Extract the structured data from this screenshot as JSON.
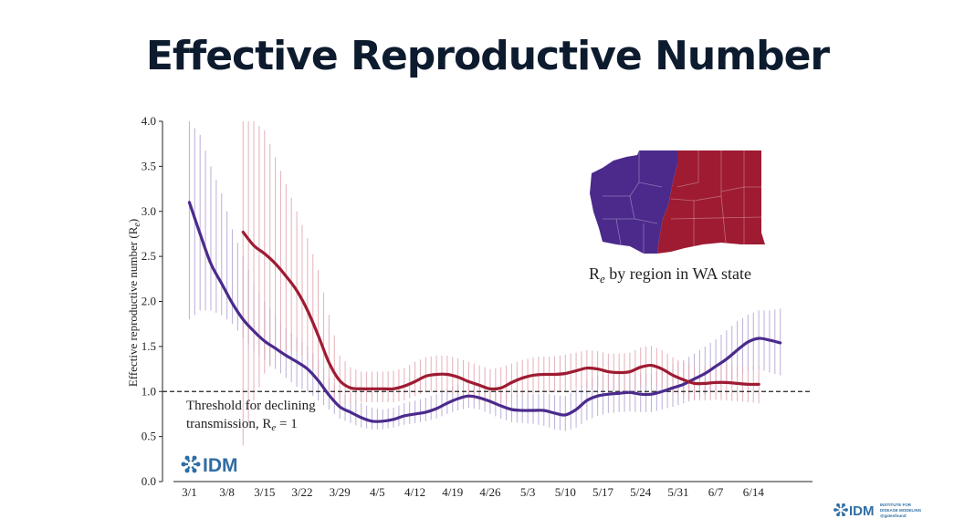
{
  "title": "Effective Reproductive Number",
  "colors": {
    "west": "#4b2a8c",
    "east": "#9e1b32",
    "west_err": "#b7a8d6",
    "east_err": "#e3a9b3",
    "idm": "#2f6ea5",
    "title": "#0d1b2e"
  },
  "map": {
    "caption_prefix": "R",
    "caption_sub": "e",
    "caption_rest": " by region in WA state"
  },
  "threshold": {
    "line1": "Threshold for declining",
    "line2_prefix": "transmission, R",
    "line2_sub": "e",
    "line2_rest": " = 1"
  },
  "logos": {
    "idm_large": "IDM",
    "idm_small": "IDM",
    "idm_small_line1": "INSTITUTE FOR",
    "idm_small_line2": "DISEASE MODELING",
    "idm_small_line3": "@gatesfound",
    "icon": "idm-snowflake-icon"
  },
  "chart_data": {
    "type": "line",
    "ylabel_prefix": "Effective reproductive number (R",
    "ylabel_sub": "e",
    "ylabel_suffix": ")",
    "ylim": [
      0,
      4
    ],
    "yticks": [
      "0.0",
      "0.5",
      "1.0",
      "1.5",
      "2.0",
      "2.5",
      "3.0",
      "3.5",
      "4.0"
    ],
    "xlim": [
      -5,
      116
    ],
    "xticks": [
      {
        "label": "3/1",
        "day": 0
      },
      {
        "label": "3/8",
        "day": 7
      },
      {
        "label": "3/15",
        "day": 14
      },
      {
        "label": "3/22",
        "day": 21
      },
      {
        "label": "3/29",
        "day": 28
      },
      {
        "label": "4/5",
        "day": 35
      },
      {
        "label": "4/12",
        "day": 42
      },
      {
        "label": "4/19",
        "day": 49
      },
      {
        "label": "4/26",
        "day": 56
      },
      {
        "label": "5/3",
        "day": 63
      },
      {
        "label": "5/10",
        "day": 70
      },
      {
        "label": "5/17",
        "day": 77
      },
      {
        "label": "5/24",
        "day": 84
      },
      {
        "label": "5/31",
        "day": 91
      },
      {
        "label": "6/7",
        "day": 98
      },
      {
        "label": "6/14",
        "day": 105
      }
    ],
    "threshold_value": 1.0,
    "grid": false,
    "series": [
      {
        "color_key": "west",
        "points": [
          [
            0,
            3.1
          ],
          [
            2,
            2.75
          ],
          [
            4,
            2.42
          ],
          [
            6,
            2.2
          ],
          [
            8,
            1.98
          ],
          [
            10,
            1.8
          ],
          [
            12,
            1.67
          ],
          [
            14,
            1.56
          ],
          [
            16,
            1.48
          ],
          [
            18,
            1.4
          ],
          [
            20,
            1.33
          ],
          [
            22,
            1.25
          ],
          [
            24,
            1.12
          ],
          [
            26,
            0.96
          ],
          [
            28,
            0.83
          ],
          [
            30,
            0.77
          ],
          [
            32,
            0.71
          ],
          [
            34,
            0.67
          ],
          [
            36,
            0.67
          ],
          [
            38,
            0.69
          ],
          [
            40,
            0.73
          ],
          [
            42,
            0.75
          ],
          [
            44,
            0.77
          ],
          [
            46,
            0.81
          ],
          [
            48,
            0.87
          ],
          [
            50,
            0.92
          ],
          [
            52,
            0.95
          ],
          [
            54,
            0.93
          ],
          [
            56,
            0.89
          ],
          [
            58,
            0.84
          ],
          [
            60,
            0.8
          ],
          [
            62,
            0.79
          ],
          [
            64,
            0.79
          ],
          [
            66,
            0.79
          ],
          [
            68,
            0.76
          ],
          [
            70,
            0.74
          ],
          [
            72,
            0.8
          ],
          [
            74,
            0.9
          ],
          [
            76,
            0.95
          ],
          [
            78,
            0.97
          ],
          [
            80,
            0.98
          ],
          [
            82,
            0.99
          ],
          [
            84,
            0.97
          ],
          [
            86,
            0.97
          ],
          [
            88,
            1.0
          ],
          [
            90,
            1.04
          ],
          [
            92,
            1.08
          ],
          [
            94,
            1.14
          ],
          [
            96,
            1.2
          ],
          [
            98,
            1.28
          ],
          [
            100,
            1.36
          ],
          [
            102,
            1.46
          ],
          [
            104,
            1.55
          ],
          [
            106,
            1.59
          ],
          [
            108,
            1.57
          ],
          [
            110,
            1.54
          ]
        ],
        "error": [
          [
            0,
            1.8,
            4.0
          ],
          [
            2,
            1.9,
            3.85
          ],
          [
            4,
            1.9,
            3.5
          ],
          [
            6,
            1.85,
            3.2
          ],
          [
            8,
            1.75,
            2.8
          ],
          [
            10,
            1.6,
            2.5
          ],
          [
            12,
            1.45,
            2.2
          ],
          [
            14,
            1.35,
            2.0
          ],
          [
            16,
            1.25,
            1.85
          ],
          [
            18,
            1.15,
            1.7
          ],
          [
            20,
            1.05,
            1.6
          ],
          [
            22,
            1.0,
            1.5
          ],
          [
            24,
            0.9,
            1.35
          ],
          [
            26,
            0.8,
            1.15
          ],
          [
            28,
            0.7,
            1.0
          ],
          [
            30,
            0.65,
            0.93
          ],
          [
            32,
            0.6,
            0.87
          ],
          [
            34,
            0.58,
            0.82
          ],
          [
            36,
            0.58,
            0.8
          ],
          [
            38,
            0.6,
            0.82
          ],
          [
            40,
            0.63,
            0.87
          ],
          [
            42,
            0.65,
            0.9
          ],
          [
            44,
            0.67,
            0.93
          ],
          [
            46,
            0.7,
            0.97
          ],
          [
            48,
            0.75,
            1.03
          ],
          [
            50,
            0.79,
            1.08
          ],
          [
            52,
            0.82,
            1.1
          ],
          [
            54,
            0.8,
            1.08
          ],
          [
            56,
            0.75,
            1.05
          ],
          [
            58,
            0.7,
            1.0
          ],
          [
            60,
            0.66,
            0.97
          ],
          [
            62,
            0.65,
            0.96
          ],
          [
            64,
            0.64,
            0.97
          ],
          [
            66,
            0.62,
            0.98
          ],
          [
            68,
            0.58,
            0.96
          ],
          [
            70,
            0.56,
            0.95
          ],
          [
            72,
            0.6,
            1.02
          ],
          [
            74,
            0.68,
            1.12
          ],
          [
            76,
            0.73,
            1.18
          ],
          [
            78,
            0.76,
            1.2
          ],
          [
            80,
            0.77,
            1.22
          ],
          [
            82,
            0.78,
            1.23
          ],
          [
            84,
            0.77,
            1.2
          ],
          [
            86,
            0.77,
            1.2
          ],
          [
            88,
            0.8,
            1.24
          ],
          [
            90,
            0.83,
            1.3
          ],
          [
            92,
            0.87,
            1.35
          ],
          [
            94,
            0.91,
            1.42
          ],
          [
            96,
            0.96,
            1.5
          ],
          [
            98,
            1.02,
            1.58
          ],
          [
            100,
            1.09,
            1.68
          ],
          [
            102,
            1.16,
            1.78
          ],
          [
            104,
            1.23,
            1.85
          ],
          [
            106,
            1.25,
            1.9
          ],
          [
            108,
            1.21,
            1.9
          ],
          [
            110,
            1.18,
            1.92
          ]
        ]
      },
      {
        "color_key": "east",
        "points": [
          [
            10,
            2.77
          ],
          [
            12,
            2.62
          ],
          [
            14,
            2.53
          ],
          [
            16,
            2.42
          ],
          [
            18,
            2.28
          ],
          [
            20,
            2.12
          ],
          [
            22,
            1.9
          ],
          [
            24,
            1.62
          ],
          [
            26,
            1.32
          ],
          [
            28,
            1.12
          ],
          [
            30,
            1.04
          ],
          [
            32,
            1.03
          ],
          [
            34,
            1.03
          ],
          [
            36,
            1.03
          ],
          [
            38,
            1.03
          ],
          [
            40,
            1.06
          ],
          [
            42,
            1.11
          ],
          [
            44,
            1.17
          ],
          [
            46,
            1.19
          ],
          [
            48,
            1.19
          ],
          [
            50,
            1.16
          ],
          [
            52,
            1.11
          ],
          [
            54,
            1.07
          ],
          [
            56,
            1.03
          ],
          [
            58,
            1.04
          ],
          [
            60,
            1.1
          ],
          [
            62,
            1.15
          ],
          [
            64,
            1.18
          ],
          [
            66,
            1.19
          ],
          [
            68,
            1.19
          ],
          [
            70,
            1.2
          ],
          [
            72,
            1.23
          ],
          [
            74,
            1.26
          ],
          [
            76,
            1.25
          ],
          [
            78,
            1.22
          ],
          [
            80,
            1.21
          ],
          [
            82,
            1.22
          ],
          [
            84,
            1.27
          ],
          [
            86,
            1.29
          ],
          [
            88,
            1.25
          ],
          [
            90,
            1.18
          ],
          [
            92,
            1.13
          ],
          [
            94,
            1.09
          ],
          [
            96,
            1.09
          ],
          [
            98,
            1.1
          ],
          [
            100,
            1.1
          ],
          [
            102,
            1.09
          ],
          [
            104,
            1.08
          ],
          [
            106,
            1.08
          ]
        ],
        "error": [
          [
            10,
            0.4,
            4.0
          ],
          [
            12,
            0.9,
            4.0
          ],
          [
            14,
            1.2,
            3.9
          ],
          [
            16,
            1.35,
            3.6
          ],
          [
            18,
            1.45,
            3.3
          ],
          [
            20,
            1.45,
            3.0
          ],
          [
            22,
            1.35,
            2.7
          ],
          [
            24,
            1.15,
            2.35
          ],
          [
            26,
            0.95,
            1.85
          ],
          [
            28,
            0.85,
            1.4
          ],
          [
            30,
            0.87,
            1.27
          ],
          [
            32,
            0.88,
            1.22
          ],
          [
            34,
            0.88,
            1.22
          ],
          [
            36,
            0.88,
            1.22
          ],
          [
            38,
            0.88,
            1.23
          ],
          [
            40,
            0.9,
            1.26
          ],
          [
            42,
            0.95,
            1.33
          ],
          [
            44,
            0.99,
            1.38
          ],
          [
            46,
            1.0,
            1.4
          ],
          [
            48,
            0.99,
            1.4
          ],
          [
            50,
            0.96,
            1.37
          ],
          [
            52,
            0.92,
            1.33
          ],
          [
            54,
            0.88,
            1.29
          ],
          [
            56,
            0.85,
            1.25
          ],
          [
            58,
            0.87,
            1.27
          ],
          [
            60,
            0.91,
            1.31
          ],
          [
            62,
            0.95,
            1.35
          ],
          [
            64,
            0.98,
            1.38
          ],
          [
            66,
            0.99,
            1.39
          ],
          [
            68,
            0.99,
            1.39
          ],
          [
            70,
            1.0,
            1.41
          ],
          [
            72,
            1.03,
            1.43
          ],
          [
            74,
            1.05,
            1.46
          ],
          [
            76,
            1.04,
            1.45
          ],
          [
            78,
            1.02,
            1.42
          ],
          [
            80,
            1.0,
            1.42
          ],
          [
            82,
            1.01,
            1.43
          ],
          [
            84,
            1.05,
            1.49
          ],
          [
            86,
            1.07,
            1.51
          ],
          [
            88,
            1.04,
            1.46
          ],
          [
            90,
            0.98,
            1.38
          ],
          [
            92,
            0.94,
            1.32
          ],
          [
            94,
            0.9,
            1.28
          ],
          [
            96,
            0.9,
            1.28
          ],
          [
            98,
            0.91,
            1.29
          ],
          [
            100,
            0.9,
            1.3
          ],
          [
            102,
            0.89,
            1.29
          ],
          [
            104,
            0.88,
            1.28
          ],
          [
            106,
            0.87,
            1.28
          ]
        ]
      }
    ]
  }
}
